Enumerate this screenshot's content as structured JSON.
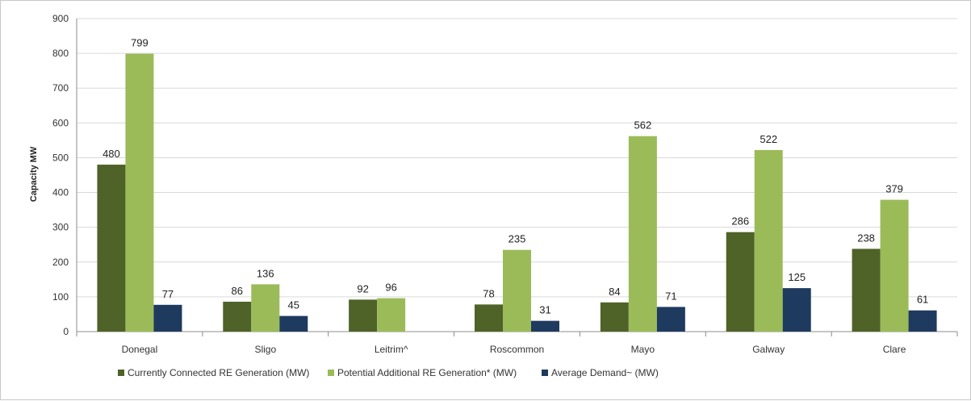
{
  "chart_data": {
    "type": "bar",
    "title": "",
    "xlabel": "",
    "ylabel": "Capacity MW",
    "ylim": [
      0,
      900
    ],
    "yticks": [
      0,
      100,
      200,
      300,
      400,
      500,
      600,
      700,
      800,
      900
    ],
    "grid": true,
    "legend_position": "bottom",
    "categories": [
      "Donegal",
      "Sligo",
      "Leitrim^",
      "Roscommon",
      "Mayo",
      "Galway",
      "Clare"
    ],
    "series": [
      {
        "name": "Currently Connected RE Generation (MW)",
        "color": "#4f6228",
        "values": [
          480,
          86,
          92,
          78,
          84,
          286,
          238
        ]
      },
      {
        "name": "Potential Additional RE Generation* (MW)",
        "color": "#9bbb59",
        "values": [
          799,
          136,
          96,
          235,
          562,
          522,
          379
        ]
      },
      {
        "name": "Average Demand~ (MW)",
        "color": "#1f3a5f",
        "values": [
          77,
          45,
          null,
          31,
          71,
          125,
          61
        ]
      }
    ]
  }
}
